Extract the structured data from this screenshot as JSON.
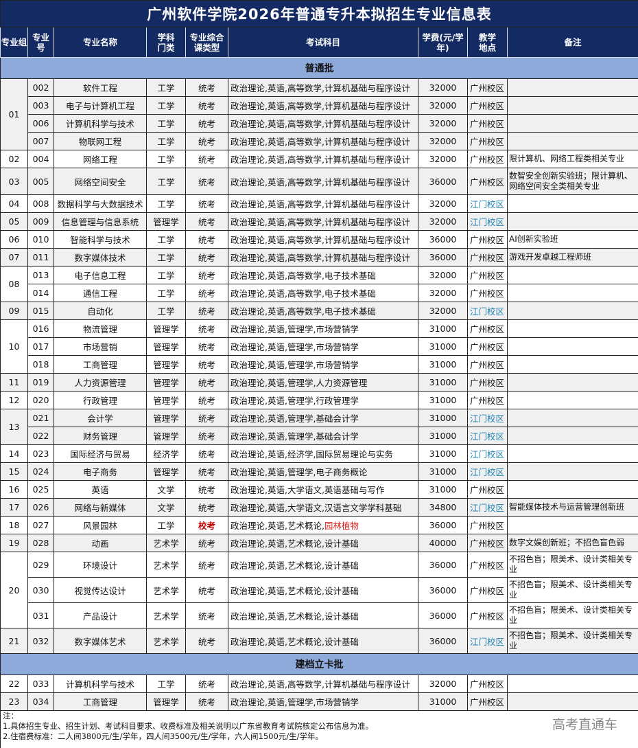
{
  "title": "广州软件学院2026年普通专升本拟招生专业信息表",
  "headers": {
    "group": "专业组",
    "code": "专业号",
    "name": "专业名称",
    "category": "学科门类",
    "type": "专业综合课类型",
    "subjects": "考试科目",
    "fee": "学费(元/学年)",
    "location": "教学地点",
    "note": "备注"
  },
  "sections": [
    {
      "label": "普通批",
      "groups": [
        {
          "group": "01",
          "rows": [
            {
              "code": "002",
              "name": "软件工程",
              "cat": "工学",
              "type": "统考",
              "subjects": "政治理论,英语,高等数学,计算机基础与程序设计",
              "fee": "32000",
              "loc": "广州校区",
              "note": ""
            },
            {
              "code": "003",
              "name": "电子与计算机工程",
              "cat": "工学",
              "type": "统考",
              "subjects": "政治理论,英语,高等数学,计算机基础与程序设计",
              "fee": "32000",
              "loc": "广州校区",
              "note": ""
            },
            {
              "code": "006",
              "name": "计算机科学与技术",
              "cat": "工学",
              "type": "统考",
              "subjects": "政治理论,英语,高等数学,计算机基础与程序设计",
              "fee": "32000",
              "loc": "广州校区",
              "note": ""
            },
            {
              "code": "007",
              "name": "物联网工程",
              "cat": "工学",
              "type": "统考",
              "subjects": "政治理论,英语,高等数学,计算机基础与程序设计",
              "fee": "32000",
              "loc": "广州校区",
              "note": ""
            }
          ]
        },
        {
          "group": "02",
          "rows": [
            {
              "code": "004",
              "name": "网络工程",
              "cat": "工学",
              "type": "统考",
              "subjects": "政治理论,英语,高等数学,计算机基础与程序设计",
              "fee": "32000",
              "loc": "广州校区",
              "note": "限计算机、网络工程类相关专业"
            }
          ]
        },
        {
          "group": "03",
          "rows": [
            {
              "code": "005",
              "name": "网络空间安全",
              "cat": "工学",
              "type": "统考",
              "subjects": "政治理论,英语,高等数学,计算机基础与程序设计",
              "fee": "36000",
              "loc": "广州校区",
              "note": "数智安全创新实验班；限计算机、网络空间安全类相关专业"
            }
          ]
        },
        {
          "group": "04",
          "rows": [
            {
              "code": "008",
              "name": "数据科学与大数据技术",
              "cat": "工学",
              "type": "统考",
              "subjects": "政治理论,英语,高等数学,计算机基础与程序设计",
              "fee": "32000",
              "loc": "江门校区",
              "note": ""
            }
          ]
        },
        {
          "group": "05",
          "rows": [
            {
              "code": "009",
              "name": "信息管理与信息系统",
              "cat": "管理学",
              "type": "统考",
              "subjects": "政治理论,英语,高等数学,计算机基础与程序设计",
              "fee": "32000",
              "loc": "江门校区",
              "note": ""
            }
          ]
        },
        {
          "group": "06",
          "rows": [
            {
              "code": "010",
              "name": "智能科学与技术",
              "cat": "工学",
              "type": "统考",
              "subjects": "政治理论,英语,高等数学,计算机基础与程序设计",
              "fee": "36000",
              "loc": "广州校区",
              "note": "AI创新实验班"
            }
          ]
        },
        {
          "group": "07",
          "rows": [
            {
              "code": "011",
              "name": "数字媒体技术",
              "cat": "工学",
              "type": "统考",
              "subjects": "政治理论,英语,高等数学,计算机基础与程序设计",
              "fee": "36000",
              "loc": "广州校区",
              "note": "游戏开发卓越工程师班"
            }
          ]
        },
        {
          "group": "08",
          "rows": [
            {
              "code": "013",
              "name": "电子信息工程",
              "cat": "工学",
              "type": "统考",
              "subjects": "政治理论,英语,高等数学,电子技术基础",
              "fee": "32000",
              "loc": "广州校区",
              "note": ""
            },
            {
              "code": "014",
              "name": "通信工程",
              "cat": "工学",
              "type": "统考",
              "subjects": "政治理论,英语,高等数学,电子技术基础",
              "fee": "32000",
              "loc": "广州校区",
              "note": ""
            }
          ]
        },
        {
          "group": "09",
          "rows": [
            {
              "code": "015",
              "name": "自动化",
              "cat": "工学",
              "type": "统考",
              "subjects": "政治理论,英语,高等数学,电子技术基础",
              "fee": "32000",
              "loc": "江门校区",
              "note": ""
            }
          ]
        },
        {
          "group": "10",
          "rows": [
            {
              "code": "016",
              "name": "物流管理",
              "cat": "管理学",
              "type": "统考",
              "subjects": "政治理论,英语,管理学,市场营销学",
              "fee": "31000",
              "loc": "广州校区",
              "note": ""
            },
            {
              "code": "017",
              "name": "市场营销",
              "cat": "管理学",
              "type": "统考",
              "subjects": "政治理论,英语,管理学,市场营销学",
              "fee": "31000",
              "loc": "广州校区",
              "note": ""
            },
            {
              "code": "018",
              "name": "工商管理",
              "cat": "管理学",
              "type": "统考",
              "subjects": "政治理论,英语,管理学,市场营销学",
              "fee": "31000",
              "loc": "广州校区",
              "note": ""
            }
          ]
        },
        {
          "group": "11",
          "rows": [
            {
              "code": "019",
              "name": "人力资源管理",
              "cat": "管理学",
              "type": "统考",
              "subjects": "政治理论,英语,管理学,人力资源管理",
              "fee": "31000",
              "loc": "广州校区",
              "note": ""
            }
          ]
        },
        {
          "group": "12",
          "rows": [
            {
              "code": "020",
              "name": "行政管理",
              "cat": "管理学",
              "type": "统考",
              "subjects": "政治理论,英语,管理学,行政管理学",
              "fee": "31000",
              "loc": "广州校区",
              "note": ""
            }
          ]
        },
        {
          "group": "13",
          "rows": [
            {
              "code": "021",
              "name": "会计学",
              "cat": "管理学",
              "type": "统考",
              "subjects": "政治理论,英语,管理学,基础会计学",
              "fee": "31000",
              "loc": "江门校区",
              "note": ""
            },
            {
              "code": "022",
              "name": "财务管理",
              "cat": "管理学",
              "type": "统考",
              "subjects": "政治理论,英语,管理学,基础会计学",
              "fee": "31000",
              "loc": "江门校区",
              "note": ""
            }
          ]
        },
        {
          "group": "14",
          "rows": [
            {
              "code": "023",
              "name": "国际经济与贸易",
              "cat": "经济学",
              "type": "统考",
              "subjects": "政治理论,英语,经济学,国际贸易理论与实务",
              "fee": "31000",
              "loc": "江门校区",
              "note": ""
            }
          ]
        },
        {
          "group": "15",
          "rows": [
            {
              "code": "024",
              "name": "电子商务",
              "cat": "管理学",
              "type": "统考",
              "subjects": "政治理论,英语,管理学,电子商务概论",
              "fee": "31000",
              "loc": "江门校区",
              "note": ""
            }
          ]
        },
        {
          "group": "16",
          "rows": [
            {
              "code": "025",
              "name": "英语",
              "cat": "文学",
              "type": "统考",
              "subjects": "政治理论,英语,大学语文,英语基础与写作",
              "fee": "31000",
              "loc": "广州校区",
              "note": ""
            }
          ]
        },
        {
          "group": "17",
          "rows": [
            {
              "code": "026",
              "name": "网络与新媒体",
              "cat": "文学",
              "type": "统考",
              "subjects": "政治理论,英语,大学语文,汉语言文学学科基础",
              "fee": "34800",
              "loc": "江门校区",
              "note": "智能媒体技术与运营管理创新班"
            }
          ]
        },
        {
          "group": "18",
          "rows": [
            {
              "code": "027",
              "name": "风景园林",
              "cat": "工学",
              "type": "校考",
              "subjects": "政治理论,英语,艺术概论,",
              "subjects_red": "园林植物",
              "fee": "36000",
              "loc": "广州校区",
              "note": ""
            }
          ]
        },
        {
          "group": "19",
          "rows": [
            {
              "code": "028",
              "name": "动画",
              "cat": "艺术学",
              "type": "统考",
              "subjects": "政治理论,英语,艺术概论,设计基础",
              "fee": "40000",
              "loc": "广州校区",
              "note": "数字文娱创新班；不招色盲色弱"
            }
          ]
        },
        {
          "group": "20",
          "rows": [
            {
              "code": "029",
              "name": "环境设计",
              "cat": "艺术学",
              "type": "统考",
              "subjects": "政治理论,英语,艺术概论,设计基础",
              "fee": "36000",
              "loc": "广州校区",
              "note": "不招色盲；限美术、设计类相关专业"
            },
            {
              "code": "030",
              "name": "视觉传达设计",
              "cat": "艺术学",
              "type": "统考",
              "subjects": "政治理论,英语,艺术概论,设计基础",
              "fee": "36000",
              "loc": "广州校区",
              "note": "不招色盲；限美术、设计类相关专业"
            },
            {
              "code": "031",
              "name": "产品设计",
              "cat": "艺术学",
              "type": "统考",
              "subjects": "政治理论,英语,艺术概论,设计基础",
              "fee": "36000",
              "loc": "广州校区",
              "note": "不招色盲；限美术、设计类相关专业"
            }
          ]
        },
        {
          "group": "21",
          "rows": [
            {
              "code": "032",
              "name": "数字媒体艺术",
              "cat": "艺术学",
              "type": "统考",
              "subjects": "政治理论,英语,艺术概论,设计基础",
              "fee": "36000",
              "loc": "江门校区",
              "note": "不招色盲；限美术、设计类相关专业"
            }
          ]
        }
      ]
    },
    {
      "label": "建档立卡批",
      "groups": [
        {
          "group": "22",
          "rows": [
            {
              "code": "033",
              "name": "计算机科学与技术",
              "cat": "工学",
              "type": "统考",
              "subjects": "政治理论,英语,高等数学,计算机基础与程序设计",
              "fee": "32000",
              "loc": "广州校区",
              "note": ""
            }
          ]
        },
        {
          "group": "23",
          "rows": [
            {
              "code": "034",
              "name": "工商管理",
              "cat": "管理学",
              "type": "统考",
              "subjects": "政治理论,英语,管理学,市场营销学",
              "fee": "31000",
              "loc": "广州校区",
              "note": ""
            }
          ]
        }
      ]
    }
  ],
  "footer": {
    "heading": "注：",
    "lines": [
      "1.具体招生专业、招生计划、考试科目要求、收费标准及相关说明以广东省教育考试院核定公布信息为准。",
      "2.住宿费标准：二人间3800元/生/学年，四人间3500元/生/学年，六人间1500元/生/学年。"
    ]
  },
  "watermark": "高考直通车",
  "colors": {
    "header_bg": "#142a63",
    "section_bg": "#8eaadb",
    "jiangmen_text": "#1f7fb0",
    "exam_school_text": "#c00000"
  }
}
